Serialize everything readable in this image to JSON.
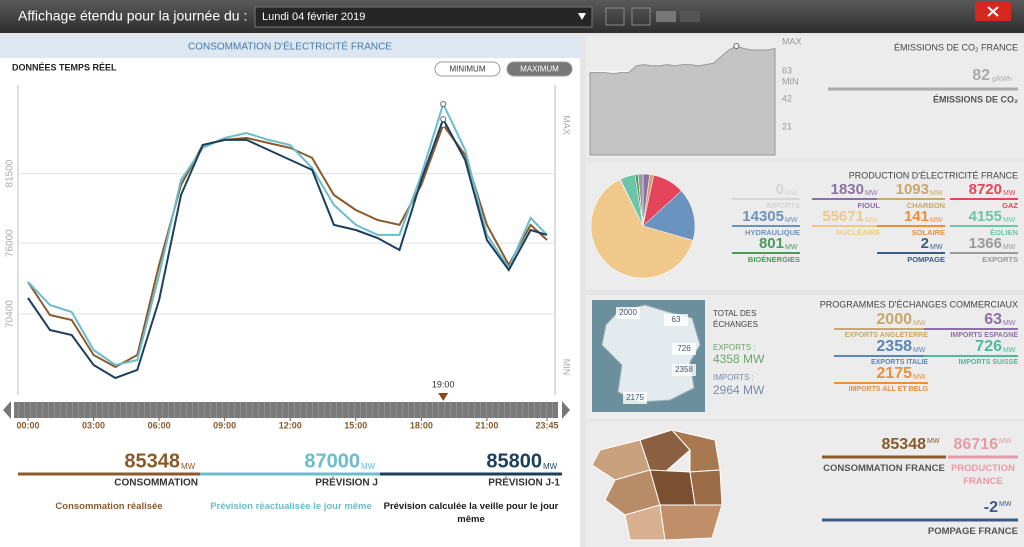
{
  "unit": "MW",
  "header": {
    "label": "Affichage étendu pour la journée du :",
    "date": "Lundi 04 février 2019"
  },
  "chart_data": [
    {
      "type": "line",
      "title": "CONSOMMATION D'ÉLECTRICITÉ FRANCE",
      "subtitle": "DONNÉES TEMPS RÉEL",
      "buttons": [
        "MINIMUM",
        "MAXIMUM"
      ],
      "x": [
        0,
        1,
        2,
        3,
        4,
        5,
        6,
        7,
        8,
        9,
        10,
        11,
        12,
        13,
        14,
        15,
        16,
        17,
        18,
        19,
        20,
        21,
        22,
        23,
        23.75
      ],
      "xlim": [
        0,
        23.75
      ],
      "xticks": [
        {
          "value": 0,
          "label": "00:00"
        },
        {
          "value": 3,
          "label": "03:00"
        },
        {
          "value": 6,
          "label": "06:00"
        },
        {
          "value": 9,
          "label": "09:00"
        },
        {
          "value": 12,
          "label": "12:00"
        },
        {
          "value": 15,
          "label": "15:00"
        },
        {
          "value": 18,
          "label": "18:00"
        },
        {
          "value": 21,
          "label": "21:00"
        },
        {
          "value": 23.75,
          "label": "23:45"
        }
      ],
      "ylim": [
        64000,
        88500
      ],
      "yticks": [
        70400,
        76000,
        81500
      ],
      "grid": true,
      "max_label": "MAX",
      "min_label": "MIN",
      "marker": {
        "value": 19,
        "label": "19:00"
      },
      "series": [
        {
          "name": "Consommation réalisée",
          "label": "CONSOMMATION",
          "color": "#8b5a2b",
          "current": 85348,
          "values": [
            72930,
            70320,
            69930,
            67160,
            66210,
            67160,
            74280,
            80600,
            83760,
            84160,
            84320,
            83920,
            83530,
            82740,
            79810,
            78620,
            77830,
            77440,
            80600,
            85348,
            82970,
            77440,
            74280,
            77440,
            76250
          ]
        },
        {
          "name": "Prévision réactualisée le jour même",
          "label": "PRÉVISION J",
          "color": "#6bbccc",
          "current": 87000,
          "values": [
            72930,
            71110,
            70560,
            67560,
            66370,
            66770,
            73490,
            81000,
            83530,
            84320,
            84710,
            84160,
            83760,
            81940,
            79020,
            77440,
            76650,
            76650,
            81390,
            87000,
            83370,
            76650,
            74040,
            78000,
            76650
          ]
        },
        {
          "name": "Prévision calculée la veille pour le jour même",
          "label": "PRÉVISION J-1",
          "color": "#1d3f5e",
          "current": 85800,
          "values": [
            71670,
            69140,
            68740,
            66370,
            65340,
            65980,
            71510,
            79810,
            83760,
            84160,
            84160,
            83370,
            82580,
            81790,
            77440,
            77040,
            76410,
            75460,
            81000,
            85800,
            82580,
            76250,
            73880,
            77040,
            76650
          ]
        }
      ]
    },
    {
      "type": "area",
      "title": "ÉMISSIONS DE CO₂ FRANCE",
      "label": "ÉMISSIONS DE CO₂",
      "value": 82,
      "value_unit": "g/kWh",
      "values": [
        62,
        62,
        62,
        61,
        62,
        62,
        67,
        68,
        67,
        67,
        68,
        67,
        68,
        68,
        67,
        68,
        69,
        74,
        79,
        82,
        80,
        79,
        79,
        79,
        80
      ],
      "ylim": [
        0,
        85
      ],
      "yticks": [
        21,
        42,
        63
      ],
      "max_label": "MAX",
      "min_label": "MIN",
      "color": "#c4c4c4"
    },
    {
      "type": "pie",
      "title": "PRODUCTION D'ÉLECTRICITÉ FRANCE",
      "categories": [
        "IMPORTS",
        "FIOUL",
        "CHARBON",
        "GAZ",
        "HYDRAULIQUE",
        "NUCLÉAIRE",
        "SOLAIRE",
        "ÉOLIEN",
        "BIOÉNERGIES",
        "POMPAGE",
        "EXPORTS"
      ],
      "values": [
        0,
        1830,
        1093,
        8720,
        14305,
        55671,
        141,
        4155,
        801,
        2,
        1366
      ],
      "colors": [
        "#d6d6d6",
        "#8e6fa8",
        "#c8a86a",
        "#e5455b",
        "#6a93bf",
        "#f0c98a",
        "#e8903a",
        "#6cc5a9",
        "#4a9a5a",
        "#3b5b86",
        "#9a9a9a"
      ]
    }
  ],
  "exchanges": {
    "title": "PROGRAMMES D'ÉCHANGES COMMERCIAUX",
    "total_label": "TOTAL DES ÉCHANGES",
    "exports_label": "EXPORTS :",
    "exports": 4358,
    "imports_label": "IMPORTS :",
    "imports": 2964,
    "programmes": [
      {
        "value": 2000,
        "label": "EXPORTS ANGLETERRE",
        "color": "#c8a86a"
      },
      {
        "value": 63,
        "label": "IMPORTS ESPAGNE",
        "color": "#8e6fa8"
      },
      {
        "value": 2358,
        "label": "EXPORTS ITALIE",
        "color": "#5b86b5"
      },
      {
        "value": 726,
        "label": "IMPORTS SUISSE",
        "color": "#4fb99a"
      },
      {
        "value": 2175,
        "label": "IMPORTS ALL ET BELG",
        "color": "#e8903a"
      }
    ]
  },
  "totals": [
    {
      "value": 85348,
      "label": "CONSOMMATION FRANCE",
      "color": "#8b5a2b"
    },
    {
      "value": 86716,
      "label": "PRODUCTION FRANCE",
      "color": "#e89aa8"
    },
    {
      "value": -2,
      "label": "POMPAGE FRANCE",
      "color": "#3b5b86"
    }
  ]
}
